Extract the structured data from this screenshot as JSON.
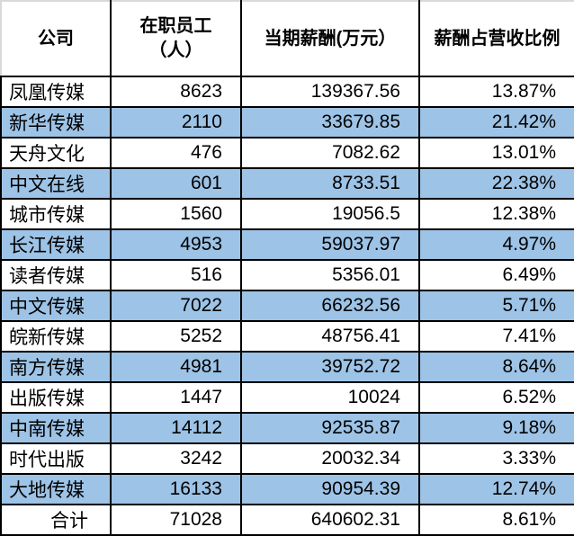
{
  "colors": {
    "stripe_blue": "#9DC3E6",
    "border_black": "#000000",
    "header_edge_gray": "#D9D9D9",
    "text": "#000000",
    "background": "#FFFFFF"
  },
  "table": {
    "columns": [
      {
        "label": "公司"
      },
      {
        "line1": "在职员工",
        "line2": "（人）"
      },
      {
        "label": "当期薪酬(万元）"
      },
      {
        "label": "薪酬占营收比例"
      }
    ],
    "rows": [
      [
        "凤凰传媒",
        "8623",
        "139367.56",
        "13.87%"
      ],
      [
        "新华传媒",
        "2110",
        "33679.85",
        "21.42%"
      ],
      [
        "天舟文化",
        "476",
        "7082.62",
        "13.01%"
      ],
      [
        "中文在线",
        "601",
        "8733.51",
        "22.38%"
      ],
      [
        "城市传媒",
        "1560",
        "19056.5",
        "12.38%"
      ],
      [
        "长江传媒",
        "4953",
        "59037.97",
        "4.97%"
      ],
      [
        "读者传媒",
        "516",
        "5356.01",
        "6.49%"
      ],
      [
        "中文传媒",
        "7022",
        "66232.56",
        "5.71%"
      ],
      [
        "皖新传媒",
        "5252",
        "48756.41",
        "7.41%"
      ],
      [
        "南方传媒",
        "4981",
        "39752.72",
        "8.64%"
      ],
      [
        "出版传媒",
        "1447",
        "10024",
        "6.52%"
      ],
      [
        "中南传媒",
        "14112",
        "92535.87",
        "9.18%"
      ],
      [
        "时代出版",
        "3242",
        "20032.34",
        "3.33%"
      ],
      [
        "大地传媒",
        "16133",
        "90954.39",
        "12.74%"
      ],
      [
        "合计",
        "71028",
        "640602.31",
        "8.61%"
      ]
    ]
  },
  "chart_data": {
    "type": "table",
    "title": "",
    "columns": [
      "公司",
      "在职员工（人）",
      "当期薪酬(万元）",
      "薪酬占营收比例"
    ],
    "records": [
      {
        "company": "凤凰传媒",
        "employees": 8623,
        "salary_wan": 139367.56,
        "salary_to_revenue": "13.87%"
      },
      {
        "company": "新华传媒",
        "employees": 2110,
        "salary_wan": 33679.85,
        "salary_to_revenue": "21.42%"
      },
      {
        "company": "天舟文化",
        "employees": 476,
        "salary_wan": 7082.62,
        "salary_to_revenue": "13.01%"
      },
      {
        "company": "中文在线",
        "employees": 601,
        "salary_wan": 8733.51,
        "salary_to_revenue": "22.38%"
      },
      {
        "company": "城市传媒",
        "employees": 1560,
        "salary_wan": 19056.5,
        "salary_to_revenue": "12.38%"
      },
      {
        "company": "长江传媒",
        "employees": 4953,
        "salary_wan": 59037.97,
        "salary_to_revenue": "4.97%"
      },
      {
        "company": "读者传媒",
        "employees": 516,
        "salary_wan": 5356.01,
        "salary_to_revenue": "6.49%"
      },
      {
        "company": "中文传媒",
        "employees": 7022,
        "salary_wan": 66232.56,
        "salary_to_revenue": "5.71%"
      },
      {
        "company": "皖新传媒",
        "employees": 5252,
        "salary_wan": 48756.41,
        "salary_to_revenue": "7.41%"
      },
      {
        "company": "南方传媒",
        "employees": 4981,
        "salary_wan": 39752.72,
        "salary_to_revenue": "8.64%"
      },
      {
        "company": "出版传媒",
        "employees": 1447,
        "salary_wan": 10024,
        "salary_to_revenue": "6.52%"
      },
      {
        "company": "中南传媒",
        "employees": 14112,
        "salary_wan": 92535.87,
        "salary_to_revenue": "9.18%"
      },
      {
        "company": "时代出版",
        "employees": 3242,
        "salary_wan": 20032.34,
        "salary_to_revenue": "3.33%"
      },
      {
        "company": "大地传媒",
        "employees": 16133,
        "salary_wan": 90954.39,
        "salary_to_revenue": "12.74%"
      },
      {
        "company": "合计",
        "employees": 71028,
        "salary_wan": 640602.31,
        "salary_to_revenue": "8.61%"
      }
    ]
  }
}
